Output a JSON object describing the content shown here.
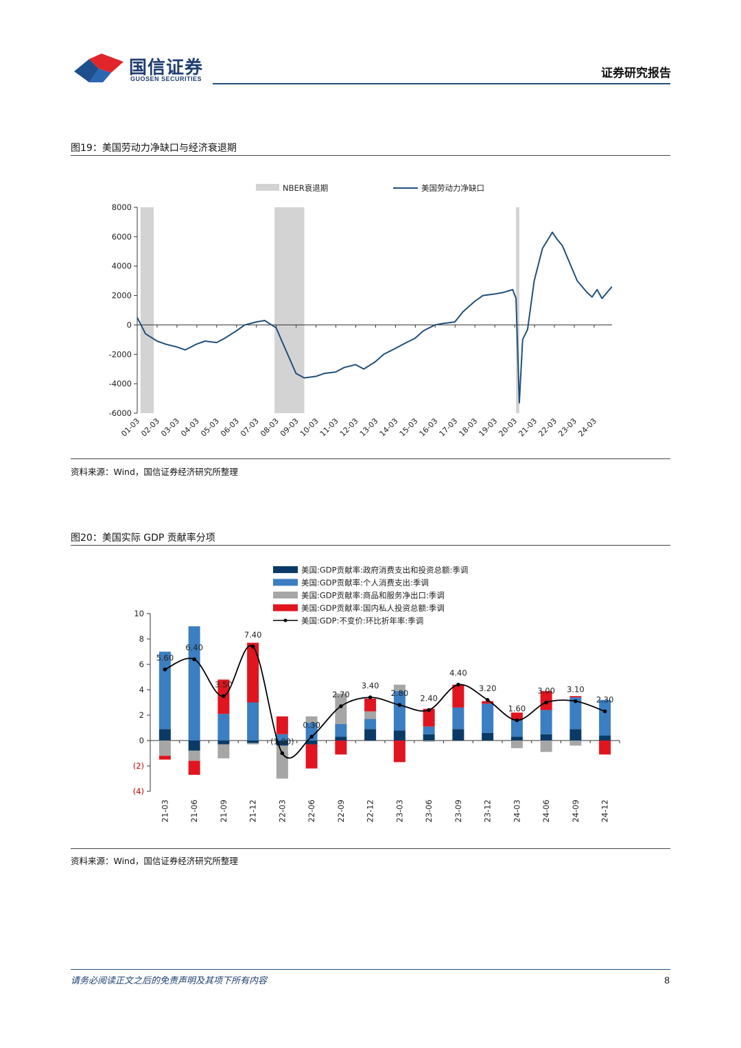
{
  "header": {
    "logo_cn": "国信证券",
    "logo_en": "GUOSEN SECURITIES",
    "report_type": "证券研究报告",
    "logo_colors": {
      "red": "#e0262b",
      "blue": "#1f4e8c"
    }
  },
  "figures": [
    {
      "title": "图19：美国劳动力净缺口与经济衰退期",
      "source": "资料来源：Wind，国信证券经济研究所整理"
    },
    {
      "title": "图20：美国实际 GDP 贡献率分项",
      "source": "资料来源：Wind，国信证券经济研究所整理"
    }
  ],
  "footer": {
    "disclaimer": "请务必阅读正文之后的免责声明及其项下所有内容",
    "page": "8"
  },
  "chart_data": [
    {
      "type": "line",
      "legend": [
        "NBER衰退期",
        "美国劳动力净缺口"
      ],
      "colors": {
        "recession": "#d3d3d3",
        "line": "#1f4e79"
      },
      "ylim": [
        -6000,
        8000
      ],
      "yticks": [
        "8000",
        "6000",
        "4000",
        "2000",
        "0",
        "-2000",
        "-4000",
        "-6000"
      ],
      "xticks": [
        "01-03",
        "02-03",
        "03-03",
        "04-03",
        "05-03",
        "06-03",
        "07-03",
        "08-03",
        "09-03",
        "10-03",
        "11-03",
        "12-03",
        "13-03",
        "14-03",
        "15-03",
        "16-03",
        "17-03",
        "18-03",
        "19-03",
        "20-03",
        "21-03",
        "22-03",
        "23-03",
        "24-03"
      ],
      "recessions": [
        [
          "2001-03",
          "2001-11"
        ],
        [
          "2007-12",
          "2009-06"
        ],
        [
          "2020-02",
          "2020-04"
        ]
      ],
      "series": [
        {
          "name": "美国劳动力净缺口",
          "x": [
            "2001-01",
            "2001-06",
            "2002-01",
            "2002-06",
            "2003-01",
            "2003-06",
            "2004-01",
            "2004-06",
            "2005-01",
            "2005-06",
            "2006-01",
            "2006-06",
            "2007-01",
            "2007-06",
            "2008-01",
            "2008-06",
            "2009-01",
            "2009-06",
            "2010-01",
            "2010-06",
            "2011-01",
            "2011-06",
            "2012-01",
            "2012-06",
            "2013-01",
            "2013-06",
            "2014-01",
            "2014-06",
            "2015-01",
            "2015-06",
            "2016-01",
            "2016-06",
            "2017-01",
            "2017-06",
            "2018-01",
            "2018-06",
            "2019-01",
            "2019-06",
            "2019-12",
            "2020-02",
            "2020-04",
            "2020-06",
            "2020-09",
            "2021-01",
            "2021-06",
            "2021-12",
            "2022-03",
            "2022-06",
            "2022-09",
            "2022-12",
            "2023-03",
            "2023-06",
            "2023-09",
            "2023-12",
            "2024-03",
            "2024-06",
            "2024-09",
            "2024-12"
          ],
          "y": [
            500,
            -600,
            -1100,
            -1300,
            -1500,
            -1700,
            -1300,
            -1100,
            -1200,
            -900,
            -400,
            0,
            200,
            300,
            -200,
            -1500,
            -3300,
            -3600,
            -3500,
            -3300,
            -3200,
            -2900,
            -2700,
            -3000,
            -2500,
            -2000,
            -1600,
            -1300,
            -900,
            -400,
            0,
            100,
            200,
            900,
            1600,
            2000,
            2100,
            2200,
            2400,
            1800,
            -5300,
            -1000,
            -300,
            3000,
            5200,
            6300,
            5800,
            5400,
            4600,
            3800,
            3000,
            2600,
            2200,
            1900,
            2400,
            1800,
            2200,
            2600
          ]
        }
      ]
    },
    {
      "type": "bar",
      "stacked": true,
      "categories": [
        "21-03",
        "21-06",
        "21-09",
        "21-12",
        "22-03",
        "22-06",
        "22-09",
        "22-12",
        "23-03",
        "23-06",
        "23-09",
        "23-12",
        "24-03",
        "24-06",
        "24-09",
        "24-12"
      ],
      "ylim": [
        -4,
        10
      ],
      "yticks": [
        "10",
        "8",
        "6",
        "4",
        "2",
        "0",
        "(2)",
        "(4)"
      ],
      "series": [
        {
          "name": "美国:GDP贡献率:政府消费支出和投资总额:季调",
          "color": "#0b3a66",
          "values": [
            0.9,
            -0.8,
            -0.3,
            -0.2,
            -0.4,
            -0.3,
            0.3,
            0.9,
            0.8,
            0.5,
            0.9,
            0.6,
            0.3,
            0.5,
            0.9,
            0.4
          ]
        },
        {
          "name": "美国:GDP贡献率:个人消费支出:季调",
          "color": "#3b7ec2",
          "values": [
            6.1,
            9.0,
            2.1,
            3.0,
            0.5,
            1.4,
            1.0,
            0.8,
            3.1,
            0.6,
            1.7,
            2.3,
            1.3,
            1.9,
            2.5,
            2.8
          ]
        },
        {
          "name": "美国:GDP贡献率:商品和服务净出口:季调",
          "color": "#a6a6a6",
          "values": [
            -1.2,
            -0.8,
            -1.1,
            -0.1,
            -2.6,
            0.5,
            2.4,
            0.6,
            0.5,
            -0.1,
            0.0,
            0.0,
            -0.6,
            -0.9,
            -0.4,
            0.0
          ]
        },
        {
          "name": "美国:GDP贡献率:国内私人投资总额:季调",
          "color": "#e0151f",
          "values": [
            -0.3,
            -1.1,
            2.7,
            4.7,
            1.4,
            -1.9,
            -1.1,
            1.0,
            -1.7,
            1.4,
            1.8,
            0.2,
            0.6,
            1.5,
            0.1,
            -1.1
          ]
        },
        {
          "name": "美国:GDP:不变价:环比折年率:季调",
          "color": "#000000",
          "type": "line",
          "values": [
            5.6,
            6.4,
            3.5,
            7.4,
            -1.0,
            0.3,
            2.7,
            3.4,
            2.8,
            2.4,
            4.4,
            3.2,
            1.6,
            3.0,
            3.1,
            2.3
          ],
          "labels": [
            "5.60",
            "6.40",
            "3.50",
            "7.40",
            "(1.00)",
            "0.30",
            "2.70",
            "3.40",
            "2.80",
            "2.40",
            "4.40",
            "3.20",
            "1.60",
            "3.00",
            "3.10",
            "2.30"
          ]
        }
      ]
    }
  ]
}
